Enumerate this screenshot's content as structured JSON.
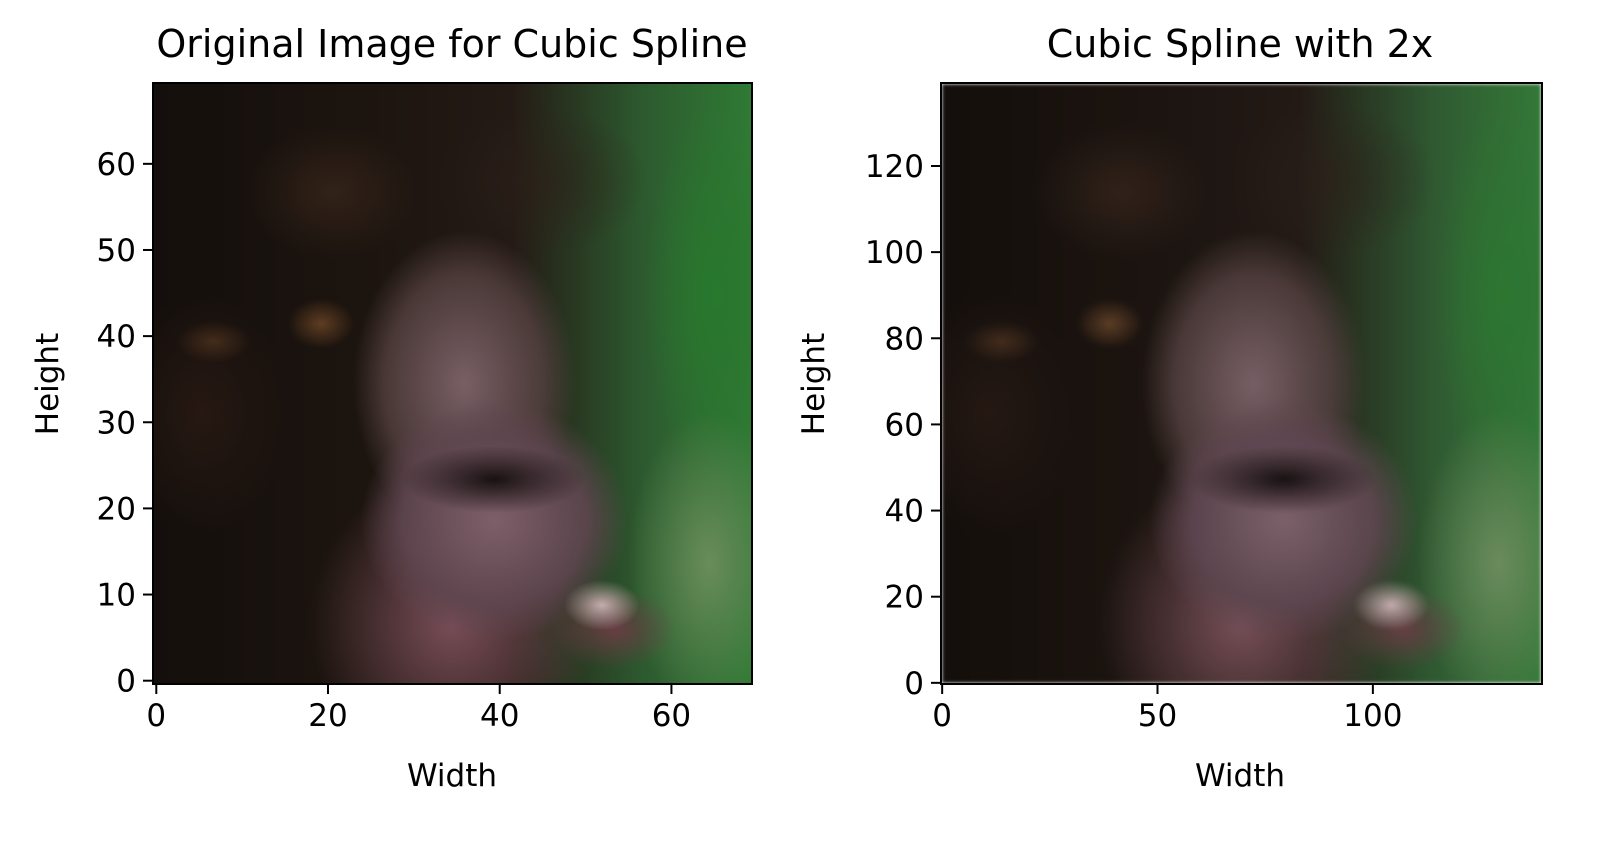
{
  "chart_data": [
    {
      "type": "image",
      "title": "Original Image for Cubic Spline",
      "xlabel": "Width",
      "ylabel": "Height",
      "xlim": [
        -0.5,
        69.5
      ],
      "ylim": [
        69.5,
        -0.5
      ],
      "xticks": [
        0,
        20,
        40,
        60
      ],
      "yticks": [
        0,
        10,
        20,
        30,
        40,
        50,
        60
      ],
      "image_size": [
        70,
        70
      ],
      "grid": false
    },
    {
      "type": "image",
      "title": "Cubic Spline with 2x",
      "xlabel": "Width",
      "ylabel": "Height",
      "xlim": [
        -0.5,
        139.5
      ],
      "ylim": [
        139.5,
        -0.5
      ],
      "xticks": [
        0,
        50,
        100
      ],
      "yticks": [
        0,
        20,
        40,
        60,
        80,
        100,
        120
      ],
      "image_size": [
        140,
        140
      ],
      "grid": false
    }
  ]
}
